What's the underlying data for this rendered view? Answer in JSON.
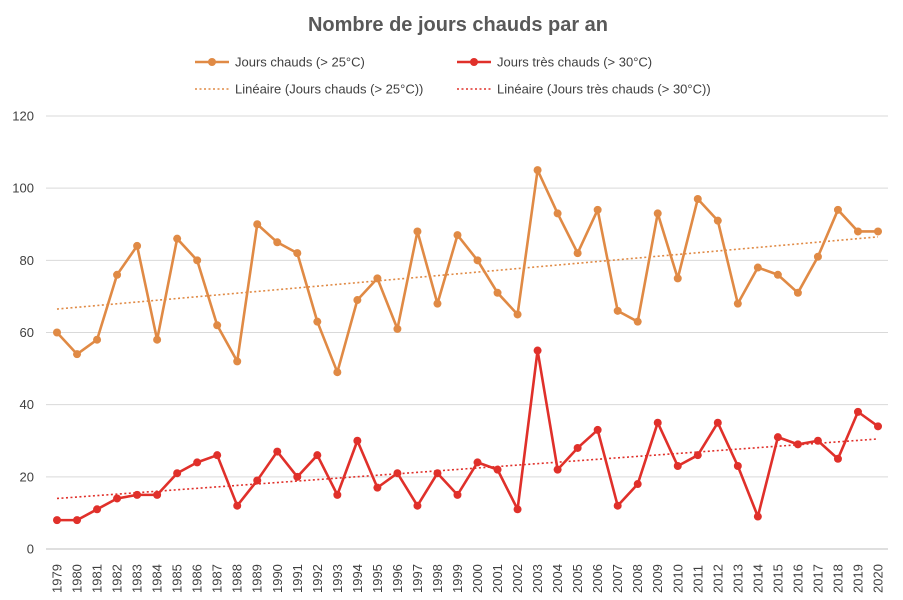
{
  "chart_data": {
    "type": "line",
    "title": "Nombre de jours chauds par an",
    "xlabel": "",
    "ylabel": "",
    "ylim": [
      0,
      120
    ],
    "yticks": [
      0,
      20,
      40,
      60,
      80,
      100,
      120
    ],
    "grid": true,
    "legend_position": "top",
    "x": [
      "1979",
      "1980",
      "1981",
      "1982",
      "1983",
      "1984",
      "1985",
      "1986",
      "1987",
      "1988",
      "1989",
      "1990",
      "1991",
      "1992",
      "1993",
      "1994",
      "1995",
      "1996",
      "1997",
      "1998",
      "1999",
      "2000",
      "2001",
      "2002",
      "2003",
      "2004",
      "2005",
      "2006",
      "2007",
      "2008",
      "2009",
      "2010",
      "2011",
      "2012",
      "2013",
      "2014",
      "2015",
      "2016",
      "2017",
      "2018",
      "2019",
      "2020"
    ],
    "series": [
      {
        "name": "Jours chauds (> 25°C)",
        "color": "#e08a45",
        "values": [
          60,
          54,
          58,
          76,
          84,
          58,
          86,
          80,
          62,
          52,
          90,
          85,
          82,
          63,
          49,
          69,
          75,
          61,
          88,
          68,
          87,
          80,
          71,
          65,
          105,
          93,
          82,
          94,
          66,
          63,
          93,
          75,
          97,
          91,
          68,
          78,
          76,
          71,
          81,
          94,
          88,
          88
        ]
      },
      {
        "name": "Jours très chauds (> 30°C)",
        "color": "#e0302a",
        "values": [
          8,
          8,
          11,
          14,
          15,
          15,
          21,
          24,
          26,
          12,
          19,
          27,
          20,
          26,
          15,
          30,
          17,
          21,
          12,
          21,
          15,
          24,
          22,
          11,
          55,
          22,
          28,
          33,
          12,
          18,
          35,
          23,
          26,
          35,
          23,
          9,
          31,
          29,
          30,
          25,
          38,
          34
        ]
      }
    ],
    "trendlines": [
      {
        "name": "Linéaire (Jours chauds (> 25°C))",
        "color": "#e08a45",
        "start": 66.5,
        "end": 86.5
      },
      {
        "name": "Linéaire (Jours très chauds (> 30°C))",
        "color": "#e0302a",
        "start": 14,
        "end": 30.5
      }
    ]
  }
}
